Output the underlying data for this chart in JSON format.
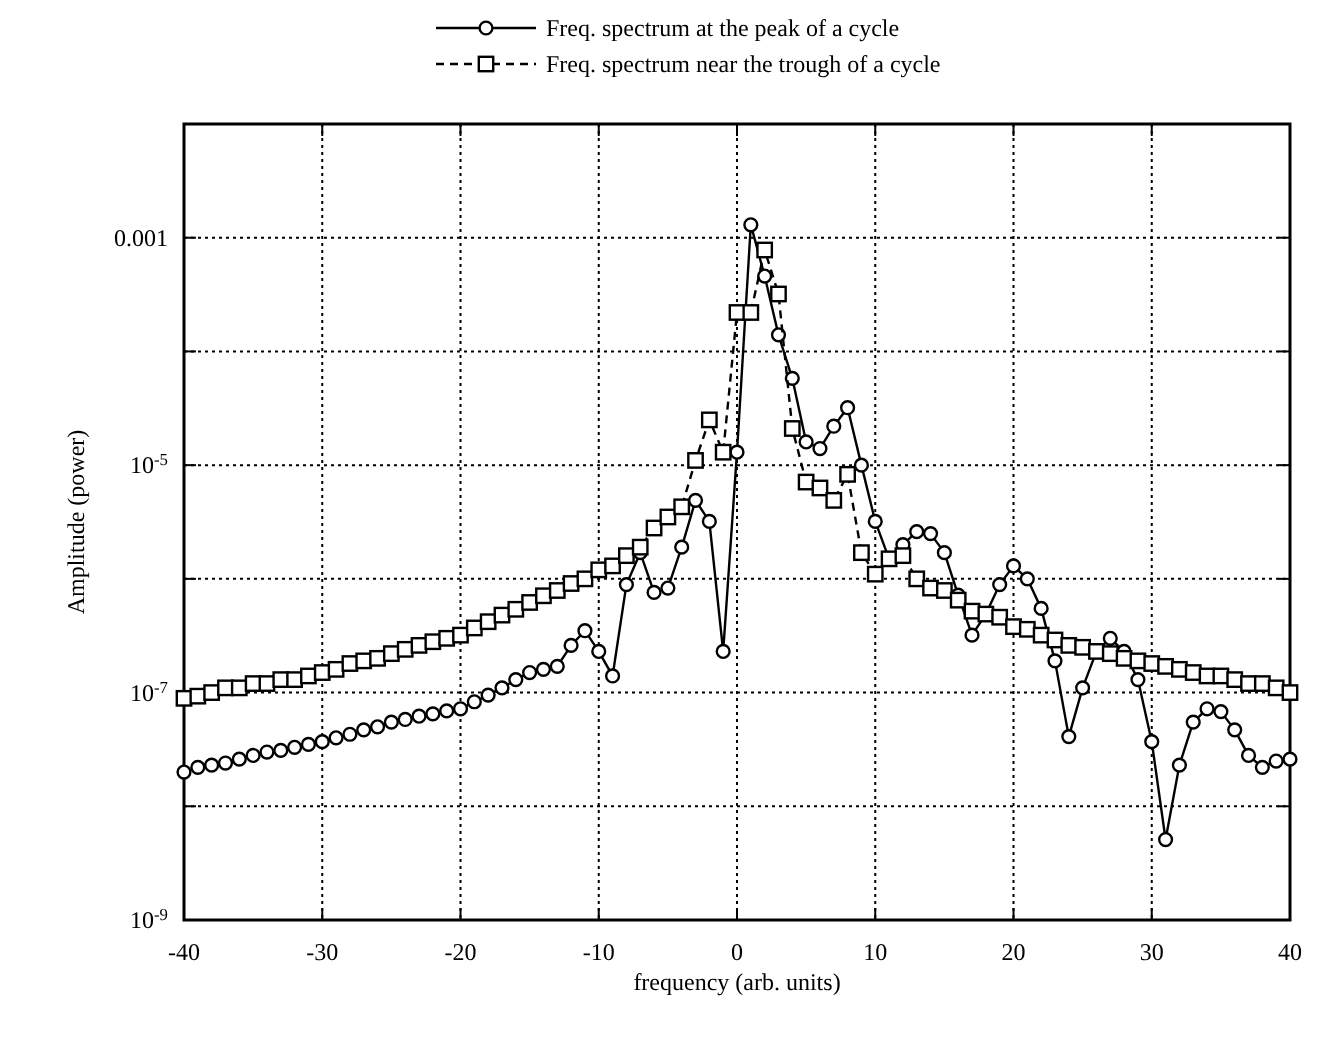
{
  "chart_data": {
    "type": "line",
    "xlabel": "frequency (arb. units)",
    "ylabel": "Amplitude (power)",
    "log": "y",
    "grid": true,
    "legend": "top",
    "xlim": [
      -40,
      40
    ],
    "xticks": [
      -40,
      -30,
      -20,
      -10,
      0,
      10,
      20,
      30,
      40
    ],
    "ylim": [
      1e-09,
      0.01
    ],
    "yticks": [
      {
        "value": 1e-09,
        "label": "10$^{-9}$"
      },
      {
        "value": 1e-08,
        "label": null
      },
      {
        "value": 1e-07,
        "label": "10$^{-7}$"
      },
      {
        "value": 1e-06,
        "label": null
      },
      {
        "value": 1e-05,
        "label": "10$^{-5}$"
      },
      {
        "value": 0.0001,
        "label": null
      },
      {
        "value": 0.001,
        "label": "0.001"
      }
    ],
    "x": [
      -40,
      -39,
      -38,
      -37,
      -36,
      -35,
      -34,
      -33,
      -32,
      -31,
      -30,
      -29,
      -28,
      -27,
      -26,
      -25,
      -24,
      -23,
      -22,
      -21,
      -20,
      -19,
      -18,
      -17,
      -16,
      -15,
      -14,
      -13,
      -12,
      -11,
      -10,
      -9,
      -8,
      -7,
      -6,
      -5,
      -4,
      -3,
      -2,
      -1,
      0,
      1,
      2,
      3,
      4,
      5,
      6,
      7,
      8,
      9,
      10,
      11,
      12,
      13,
      14,
      15,
      16,
      17,
      18,
      19,
      20,
      21,
      22,
      23,
      24,
      25,
      26,
      27,
      28,
      29,
      30,
      31,
      32,
      33,
      34,
      35,
      36,
      37,
      38,
      39,
      40
    ],
    "series": [
      {
        "name": "Freq. spectrum at the peak of a cycle",
        "color": "#000000",
        "marker": "circle",
        "line_style": "solid",
        "values": [
          2e-08,
          2.2e-08,
          2.3e-08,
          2.4e-08,
          2.6e-08,
          2.8e-08,
          3e-08,
          3.1e-08,
          3.3e-08,
          3.5e-08,
          3.7e-08,
          4e-08,
          4.3e-08,
          4.7e-08,
          5e-08,
          5.5e-08,
          5.8e-08,
          6.2e-08,
          6.5e-08,
          6.9e-08,
          7.2e-08,
          8.3e-08,
          9.5e-08,
          1.1e-07,
          1.3e-07,
          1.5e-07,
          1.6e-07,
          1.7e-07,
          2.6e-07,
          3.5e-07,
          2.3e-07,
          1.4e-07,
          8.9e-07,
          1.7e-06,
          7.6e-07,
          8.3e-07,
          1.9e-06,
          4.9e-06,
          3.2e-06,
          2.3e-07,
          1.3e-05,
          0.0013,
          0.00046,
          0.00014,
          5.8e-05,
          1.6e-05,
          1.4e-05,
          2.2e-05,
          3.2e-05,
          1e-05,
          3.2e-06,
          1.5e-06,
          2e-06,
          2.6e-06,
          2.5e-06,
          1.7e-06,
          7.2e-07,
          3.2e-07,
          4.9e-07,
          8.9e-07,
          1.3e-06,
          1e-06,
          5.5e-07,
          1.9e-07,
          4.1e-08,
          1.1e-07,
          2.3e-07,
          3e-07,
          2.3e-07,
          1.3e-07,
          3.7e-08,
          5.1e-09,
          2.3e-08,
          5.5e-08,
          7.2e-08,
          6.8e-08,
          4.7e-08,
          2.8e-08,
          2.2e-08,
          2.5e-08,
          2.6e-08
        ]
      },
      {
        "name": "Freq. spectrum near the trough of a cycle",
        "color": "#000000",
        "marker": "square",
        "line_style": "dashed",
        "values": [
          8.9e-08,
          9.3e-08,
          1e-07,
          1.1e-07,
          1.1e-07,
          1.2e-07,
          1.2e-07,
          1.3e-07,
          1.3e-07,
          1.4e-07,
          1.5e-07,
          1.6e-07,
          1.8e-07,
          1.9e-07,
          2e-07,
          2.2e-07,
          2.4e-07,
          2.6e-07,
          2.8e-07,
          3e-07,
          3.2e-07,
          3.7e-07,
          4.2e-07,
          4.8e-07,
          5.4e-07,
          6.2e-07,
          7.1e-07,
          7.9e-07,
          9.1e-07,
          1e-06,
          1.2e-06,
          1.3e-06,
          1.6e-06,
          1.9e-06,
          2.8e-06,
          3.5e-06,
          4.3e-06,
          1.1e-05,
          2.5e-05,
          1.3e-05,
          0.00022,
          0.00022,
          0.00078,
          0.00032,
          2.1e-05,
          7.1e-06,
          6.3e-06,
          4.9e-06,
          8.3e-06,
          1.7e-06,
          1.1e-06,
          1.5e-06,
          1.6e-06,
          1e-06,
          8.3e-07,
          7.9e-07,
          6.5e-07,
          5.2e-07,
          4.9e-07,
          4.6e-07,
          3.8e-07,
          3.6e-07,
          3.2e-07,
          2.9e-07,
          2.6e-07,
          2.5e-07,
          2.3e-07,
          2.2e-07,
          2e-07,
          1.9e-07,
          1.8e-07,
          1.7e-07,
          1.6e-07,
          1.5e-07,
          1.4e-07,
          1.4e-07,
          1.3e-07,
          1.2e-07,
          1.2e-07,
          1.1e-07,
          1e-07
        ]
      }
    ]
  }
}
